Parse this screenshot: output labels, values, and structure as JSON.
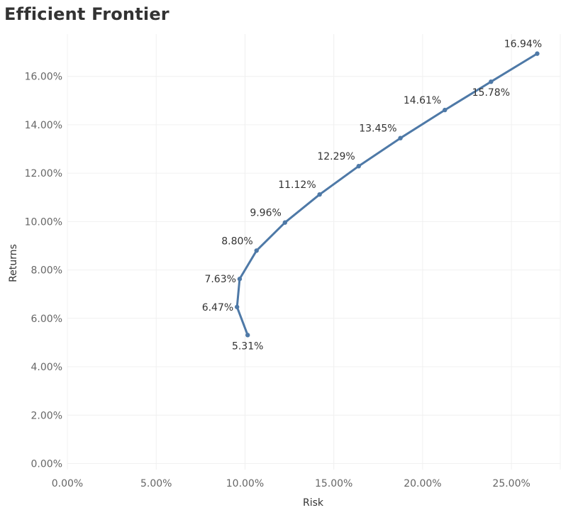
{
  "chart_data": {
    "type": "line",
    "title": "Efficient Frontier",
    "xlabel": "Risk",
    "ylabel": "Returns",
    "xlim": [
      0,
      0.2775
    ],
    "ylim": [
      -0.0025,
      0.1775
    ],
    "x_ticks": [
      0,
      0.05,
      0.1,
      0.15,
      0.2,
      0.25
    ],
    "x_tick_labels": [
      "0.00%",
      "5.00%",
      "10.00%",
      "15.00%",
      "20.00%",
      "25.00%"
    ],
    "y_ticks": [
      0,
      0.02,
      0.04,
      0.06,
      0.08,
      0.1,
      0.12,
      0.14,
      0.16
    ],
    "y_tick_labels": [
      "0.00%",
      "2.00%",
      "4.00%",
      "6.00%",
      "8.00%",
      "10.00%",
      "12.00%",
      "14.00%",
      "16.00%"
    ],
    "grid": true,
    "line_color": "#4e79a7",
    "series": [
      {
        "x": [
          0.1015,
          0.0955,
          0.097,
          0.1065,
          0.1225,
          0.142,
          0.164,
          0.1875,
          0.2125,
          0.2385,
          0.2645
        ],
        "y": [
          0.0531,
          0.0647,
          0.0763,
          0.088,
          0.0996,
          0.1112,
          0.1229,
          0.1345,
          0.1461,
          0.1578,
          0.1694
        ],
        "labels": [
          "5.31%",
          "6.47%",
          "7.63%",
          "8.80%",
          "9.96%",
          "11.12%",
          "12.29%",
          "13.45%",
          "14.61%",
          "15.78%",
          "16.94%"
        ],
        "label_positions": [
          "below",
          "left",
          "left",
          "left",
          "left",
          "left",
          "left",
          "left",
          "left",
          "below",
          "above"
        ]
      }
    ]
  }
}
